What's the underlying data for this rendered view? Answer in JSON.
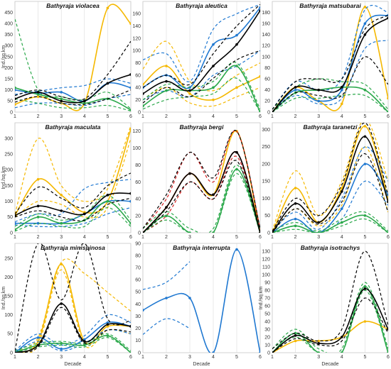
{
  "chart_data": [
    {
      "type": "line",
      "title": "Bathyraja violacea",
      "ylabel": "Ind./sq.km",
      "xlabel": "",
      "x": [
        1,
        2,
        3,
        4,
        5,
        6
      ],
      "ylim": [
        0,
        500
      ],
      "yticks": [
        0,
        50,
        100,
        150,
        200,
        250,
        300,
        350,
        400,
        450
      ],
      "series": [
        {
          "color": "#f5b800",
          "values": [
            35,
            70,
            40,
            40,
            470,
            400
          ],
          "upper": null,
          "lower": null
        },
        {
          "color": "#1f78d1",
          "values": [
            100,
            85,
            90,
            50,
            130,
            110
          ],
          "upper": [
            80,
            95,
            110,
            120,
            150,
            130
          ],
          "lower": [
            20,
            40,
            40,
            30,
            60,
            80
          ]
        },
        {
          "color": "#2aa84a",
          "values": [
            110,
            80,
            60,
            40,
            60,
            10
          ],
          "upper": [
            420,
            100,
            70,
            55,
            90,
            15
          ],
          "lower": [
            60,
            40,
            20,
            20,
            30,
            5
          ]
        },
        {
          "color": "#000000",
          "values": [
            60,
            90,
            50,
            50,
            130,
            170
          ],
          "upper": [
            75,
            100,
            70,
            60,
            170,
            320
          ],
          "lower": [
            45,
            70,
            40,
            35,
            60,
            100
          ]
        }
      ]
    },
    {
      "type": "line",
      "title": "Bathyraja aleutica",
      "ylabel": "",
      "xlabel": "",
      "x": [
        1,
        2,
        3,
        4,
        5,
        6
      ],
      "ylim": [
        0,
        180
      ],
      "yticks": [
        0,
        20,
        40,
        60,
        80,
        100,
        120,
        140,
        160
      ],
      "series": [
        {
          "color": "#f5b800",
          "values": [
            45,
            75,
            30,
            20,
            40,
            58
          ],
          "upper": [
            70,
            115,
            50,
            35,
            60,
            80
          ],
          "lower": [
            20,
            40,
            15,
            10,
            25,
            40
          ]
        },
        {
          "color": "#1f78d1",
          "values": [
            40,
            60,
            40,
            110,
            125,
            170
          ],
          "upper": [
            85,
            95,
            50,
            135,
            160,
            175
          ],
          "lower": [
            20,
            35,
            25,
            60,
            75,
            100
          ]
        },
        {
          "color": "#2aa84a",
          "values": [
            10,
            35,
            35,
            40,
            75,
            0
          ],
          "upper": [
            20,
            45,
            40,
            50,
            80,
            5
          ],
          "lower": [
            5,
            20,
            25,
            30,
            55,
            0
          ]
        },
        {
          "color": "#000000",
          "values": [
            30,
            50,
            35,
            75,
            110,
            165
          ],
          "upper": [
            40,
            60,
            45,
            95,
            140,
            175
          ],
          "lower": [
            15,
            40,
            25,
            55,
            85,
            100
          ]
        }
      ]
    },
    {
      "type": "line",
      "title": "Bathyraja matsubarai",
      "ylabel": "",
      "xlabel": "",
      "x": [
        1,
        2,
        3,
        4,
        5,
        6
      ],
      "ylim": [
        0,
        200
      ],
      "yticks": [
        0,
        20,
        40,
        60,
        80,
        100,
        120,
        140,
        160,
        180
      ],
      "series": [
        {
          "color": "#f5b800",
          "values": [
            0,
            45,
            20,
            15,
            190,
            25
          ],
          "upper": null,
          "lower": null
        },
        {
          "color": "#1f78d1",
          "values": [
            0,
            40,
            20,
            40,
            160,
            175
          ],
          "upper": [
            5,
            55,
            40,
            60,
            185,
            180
          ],
          "lower": [
            0,
            30,
            15,
            25,
            115,
            130
          ]
        },
        {
          "color": "#2aa84a",
          "values": [
            0,
            35,
            40,
            45,
            40,
            0
          ],
          "upper": [
            5,
            45,
            60,
            55,
            50,
            5
          ],
          "lower": [
            0,
            25,
            25,
            30,
            30,
            0
          ]
        },
        {
          "color": "#000000",
          "values": [
            0,
            45,
            40,
            45,
            140,
            170
          ],
          "upper": [
            5,
            55,
            60,
            60,
            150,
            175
          ],
          "lower": [
            0,
            35,
            30,
            30,
            100,
            50
          ]
        }
      ]
    },
    {
      "type": "line",
      "title": "Bathyraja maculata",
      "ylabel": "Ind./sq.km",
      "xlabel": "",
      "x": [
        1,
        2,
        3,
        4,
        5,
        6
      ],
      "ylim": [
        0,
        350
      ],
      "yticks": [
        0,
        50,
        100,
        150,
        200,
        250,
        300
      ],
      "series": [
        {
          "color": "#f5b800",
          "values": [
            55,
            170,
            120,
            65,
            100,
            330
          ],
          "upper": [
            60,
            300,
            150,
            100,
            140,
            340
          ],
          "lower": [
            50,
            100,
            90,
            50,
            80,
            300
          ]
        },
        {
          "color": "#1f78d1",
          "values": [
            30,
            30,
            30,
            60,
            100,
            100
          ],
          "upper": [
            35,
            60,
            60,
            140,
            160,
            170
          ],
          "lower": [
            25,
            20,
            20,
            30,
            60,
            80
          ]
        },
        {
          "color": "#2aa84a",
          "values": [
            10,
            50,
            30,
            40,
            100,
            30
          ],
          "upper": [
            20,
            60,
            40,
            60,
            120,
            40
          ],
          "lower": [
            5,
            30,
            20,
            20,
            80,
            20
          ]
        },
        {
          "color": "#000000",
          "values": [
            55,
            85,
            70,
            60,
            120,
            125
          ],
          "upper": [
            60,
            145,
            110,
            80,
            150,
            190
          ],
          "lower": [
            50,
            70,
            50,
            40,
            90,
            110
          ]
        }
      ]
    },
    {
      "type": "line",
      "title": "Bathyraja bergi",
      "ylabel": "",
      "xlabel": "",
      "x": [
        1,
        2,
        3,
        4,
        5,
        6
      ],
      "ylim": [
        0,
        130
      ],
      "yticks": [
        0,
        20,
        40,
        60,
        80,
        100,
        120
      ],
      "series": [
        {
          "color": "#f5b800",
          "values": [
            0,
            30,
            70,
            45,
            120,
            0
          ],
          "upper": null,
          "lower": null
        },
        {
          "color": "#d42020",
          "values": [
            0,
            30,
            70,
            45,
            95,
            0
          ],
          "upper": [
            5,
            40,
            95,
            60,
            120,
            5
          ],
          "lower": [
            0,
            20,
            60,
            40,
            90,
            0
          ]
        },
        {
          "color": "#2aa84a",
          "values": [
            0,
            20,
            0,
            0,
            75,
            0
          ],
          "upper": [
            5,
            25,
            5,
            5,
            80,
            5
          ],
          "lower": [
            0,
            15,
            0,
            0,
            70,
            0
          ]
        },
        {
          "color": "#000000",
          "values": [
            0,
            30,
            70,
            45,
            95,
            0
          ],
          "upper": [
            5,
            45,
            95,
            65,
            120,
            5
          ],
          "lower": [
            0,
            25,
            60,
            40,
            85,
            0
          ]
        }
      ]
    },
    {
      "type": "line",
      "title": "Bathyraja taranetzi",
      "ylabel": "",
      "xlabel": "",
      "x": [
        1,
        2,
        3,
        4,
        5,
        6
      ],
      "ylim": [
        0,
        320
      ],
      "yticks": [
        0,
        50,
        100,
        150,
        200,
        250,
        300
      ],
      "series": [
        {
          "color": "#f5b800",
          "values": [
            0,
            130,
            30,
            130,
            310,
            100
          ],
          "upper": [
            5,
            180,
            50,
            150,
            330,
            150
          ],
          "lower": [
            0,
            70,
            20,
            80,
            250,
            60
          ]
        },
        {
          "color": "#1f78d1",
          "values": [
            0,
            40,
            0,
            70,
            200,
            110
          ],
          "upper": [
            5,
            60,
            10,
            100,
            250,
            150
          ],
          "lower": [
            0,
            20,
            0,
            40,
            150,
            80
          ]
        },
        {
          "color": "#2aa84a",
          "values": [
            0,
            20,
            0,
            30,
            50,
            0
          ],
          "upper": [
            5,
            30,
            5,
            40,
            60,
            5
          ],
          "lower": [
            0,
            10,
            0,
            20,
            40,
            0
          ]
        },
        {
          "color": "#000000",
          "values": [
            0,
            85,
            30,
            120,
            280,
            90
          ],
          "upper": [
            5,
            100,
            50,
            140,
            320,
            110
          ],
          "lower": [
            0,
            70,
            25,
            90,
            230,
            60
          ]
        }
      ]
    },
    {
      "type": "line",
      "title": "Bathyraja minispinosa",
      "ylabel": "Ind./sq.km",
      "xlabel": "Decade",
      "x": [
        1,
        2,
        3,
        4,
        5,
        6
      ],
      "ylim": [
        0,
        290
      ],
      "yticks": [
        0,
        50,
        100,
        150,
        200,
        250
      ],
      "series": [
        {
          "color": "#f5b800",
          "values": [
            0,
            30,
            235,
            30,
            70,
            70
          ],
          "upper": [
            5,
            40,
            240,
            210,
            160,
            110
          ],
          "lower": [
            0,
            20,
            220,
            20,
            60,
            50
          ]
        },
        {
          "color": "#1f78d1",
          "values": [
            0,
            40,
            10,
            35,
            80,
            70
          ],
          "upper": [
            5,
            50,
            20,
            45,
            100,
            80
          ],
          "lower": [
            0,
            30,
            5,
            25,
            60,
            50
          ]
        },
        {
          "color": "#2aa84a",
          "values": [
            0,
            20,
            25,
            20,
            45,
            0
          ],
          "upper": [
            5,
            25,
            30,
            25,
            50,
            5
          ],
          "lower": [
            0,
            15,
            20,
            15,
            40,
            0
          ]
        },
        {
          "color": "#000000",
          "values": [
            0,
            20,
            130,
            30,
            75,
            70
          ],
          "upper": [
            5,
            290,
            140,
            290,
            90,
            85
          ],
          "lower": [
            0,
            15,
            120,
            25,
            60,
            55
          ]
        }
      ]
    },
    {
      "type": "line",
      "title": "Bathyraja interrupta",
      "ylabel": "",
      "xlabel": "Decade",
      "x": [
        1,
        2,
        3,
        4,
        5,
        6
      ],
      "ylim": [
        0,
        90
      ],
      "yticks": [
        0,
        10,
        20,
        30,
        40,
        50,
        60,
        70,
        80,
        90
      ],
      "series": [
        {
          "color": "#1f78d1",
          "values": [
            35,
            45,
            45,
            0,
            85,
            0
          ],
          "upper": [
            52,
            58,
            75,
            null,
            null,
            null
          ],
          "lower": [
            15,
            28,
            20,
            null,
            null,
            null
          ]
        }
      ]
    },
    {
      "type": "line",
      "title": "Bathyraja isotrachys",
      "ylabel": "Ind./sq.km",
      "xlabel": "Decade",
      "x": [
        1,
        2,
        3,
        4,
        5,
        6
      ],
      "ylim": [
        0,
        140
      ],
      "yticks": [
        0,
        10,
        20,
        30,
        40,
        50,
        60,
        70,
        80,
        90,
        100,
        110,
        120,
        130
      ],
      "series": [
        {
          "color": "#f5b800",
          "values": [
            0,
            15,
            15,
            20,
            40,
            30
          ],
          "upper": null,
          "lower": null
        },
        {
          "color": "#2aa84a",
          "values": [
            0,
            25,
            0,
            0,
            85,
            0
          ],
          "upper": [
            5,
            30,
            5,
            5,
            90,
            5
          ],
          "lower": [
            0,
            20,
            0,
            0,
            80,
            0
          ]
        },
        {
          "color": "#000000",
          "values": [
            0,
            22,
            12,
            20,
            82,
            30
          ],
          "upper": [
            5,
            25,
            15,
            30,
            130,
            35
          ],
          "lower": [
            0,
            18,
            10,
            15,
            70,
            25
          ]
        }
      ]
    }
  ]
}
